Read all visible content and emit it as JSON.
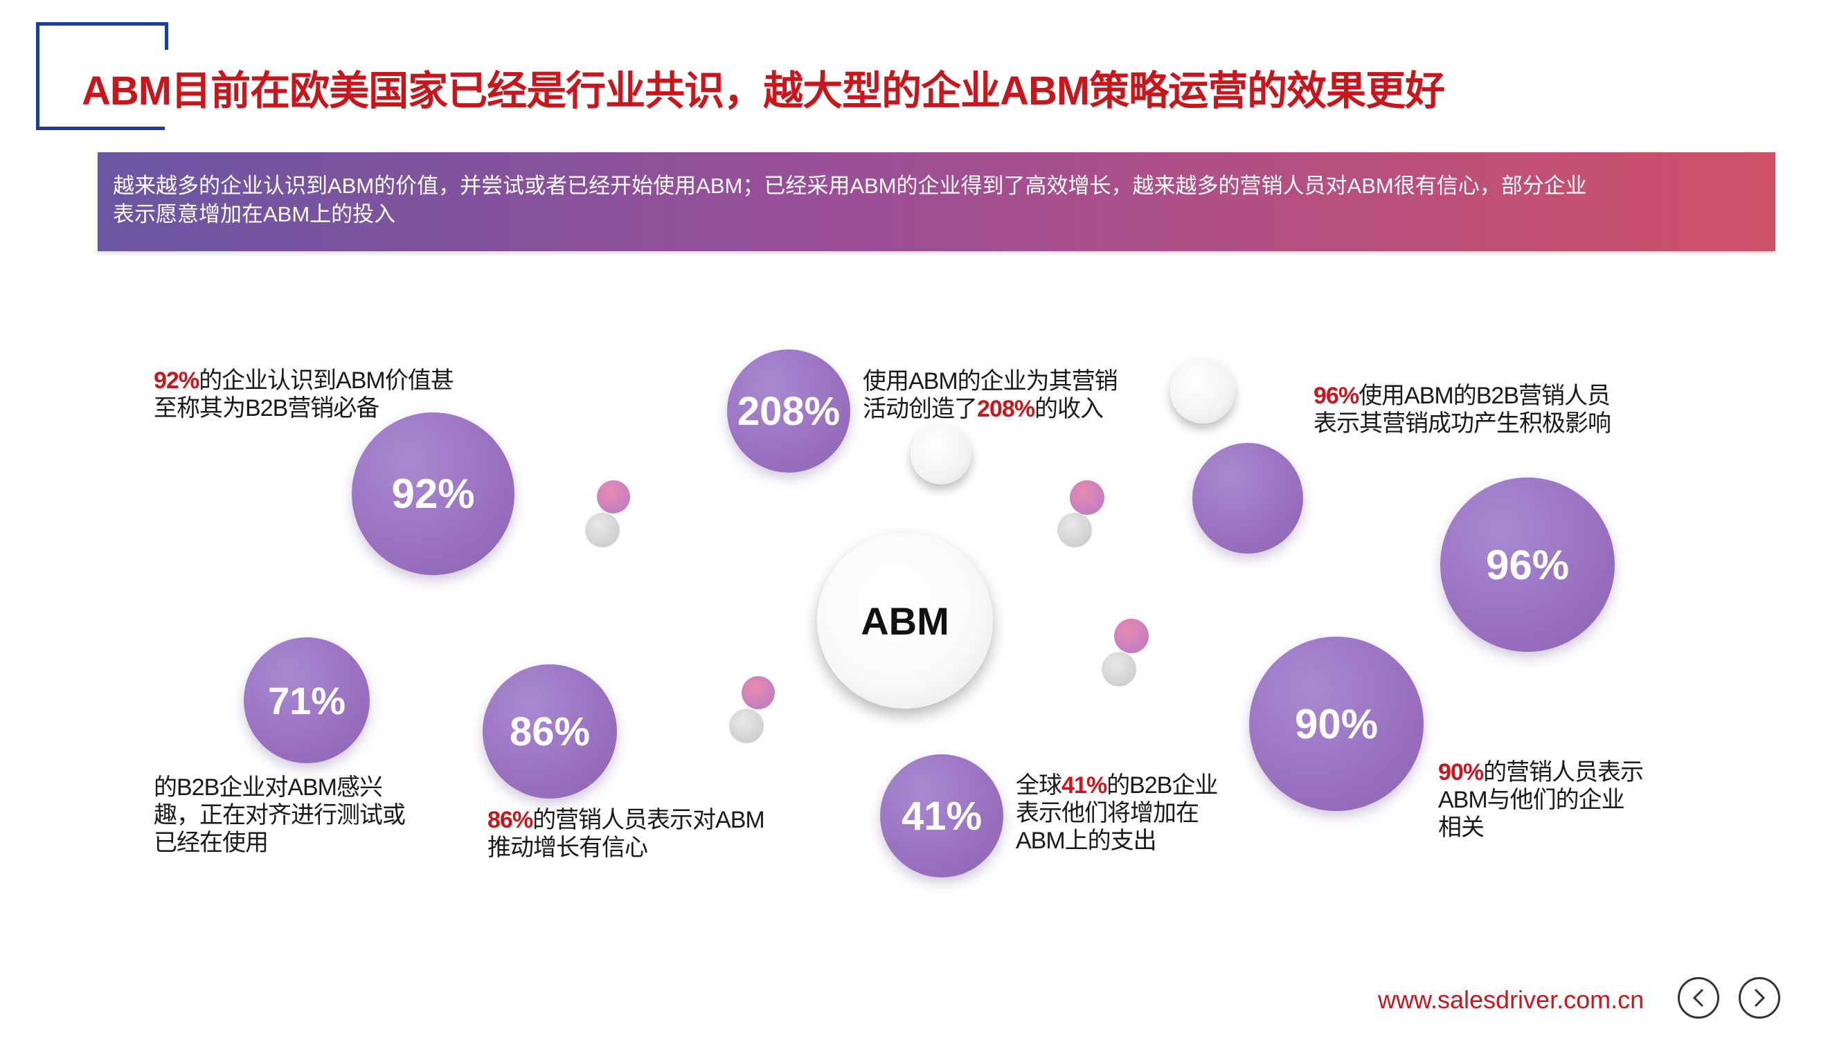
{
  "title": "ABM目前在欧美国家已经是行业共识，越大型的企业ABM策略运营的效果更好",
  "banner": {
    "line1": "越来越多的企业认识到ABM的价值，并尝试或者已经开始使用ABM；已经采用ABM的企业得到了高效增长，越来越多的营销人员对ABM很有信心，部分企业",
    "line2": "表示愿意增加在ABM上的投入"
  },
  "center_label": "ABM",
  "bubbles": {
    "b92": "92%",
    "b208": "208%",
    "b96": "96%",
    "b71": "71%",
    "b86": "86%",
    "b41": "41%",
    "b90": "90%"
  },
  "captions": {
    "c92": {
      "hl": "92%",
      "line1_rest": "的企业认识到ABM价值甚",
      "line2": "至称其为B2B营销必备"
    },
    "c208": {
      "line1": "使用ABM的企业为其营销",
      "line2_pre": "活动创造了",
      "hl": "208%",
      "line2_post": "的收入"
    },
    "c96": {
      "hl": "96%",
      "line1_rest": "使用ABM的B2B营销人员",
      "line2": "表示其营销成功产生积极影响"
    },
    "c71": {
      "line1": "的B2B企业对ABM感兴",
      "line2": "趣，正在对齐进行测试或",
      "line3": "已经在使用"
    },
    "c86": {
      "hl": "86%",
      "line1_rest": "的营销人员表示对ABM",
      "line2": "推动增长有信心"
    },
    "c41": {
      "pre": "全球",
      "hl": "41%",
      "line1_rest": "的B2B企业",
      "line2": "表示他们将增加在",
      "line3": "ABM上的支出"
    },
    "c90": {
      "hl": "90%",
      "line1_rest": "的营销人员表示",
      "line2": "ABM与他们的企业",
      "line3": "相关"
    }
  },
  "footer": {
    "url": "www.salesdriver.com.cn",
    "prev_icon": "chevron-left-icon",
    "next_icon": "chevron-right-icon"
  },
  "colors": {
    "title_red": "#c8161d",
    "bracket_blue": "#1f3f95",
    "bubble_purple": "#9a72c0"
  }
}
